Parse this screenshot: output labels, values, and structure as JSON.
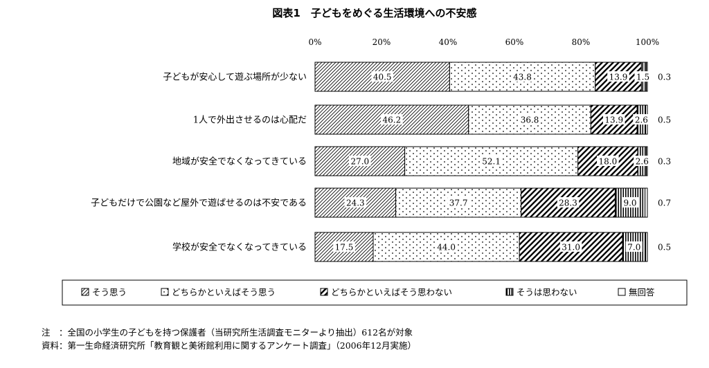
{
  "chart_data": {
    "type": "bar",
    "stacked": true,
    "orientation": "horizontal",
    "title": "図表1　子どもをめぐる生活環境への不安感",
    "x_ticks": [
      "0%",
      "20%",
      "40%",
      "60%",
      "80%",
      "100%"
    ],
    "xlim": [
      0,
      100
    ],
    "categories": [
      "子どもが安心して遊ぶ場所が少ない",
      "1人で外出させるのは心配だ",
      "地域が安全でなくなってきている",
      "子どもだけで公園など屋外で遊ばせるのは不安である",
      "学校が安全でなくなってきている"
    ],
    "series": [
      {
        "name": "そう思う",
        "values": [
          40.5,
          46.2,
          27.0,
          24.3,
          17.5
        ]
      },
      {
        "name": "どちらかといえばそう思う",
        "values": [
          43.8,
          36.8,
          52.1,
          37.7,
          44.0
        ]
      },
      {
        "name": "どちらかといえばそう思わない",
        "values": [
          13.9,
          13.9,
          18.0,
          28.3,
          31.0
        ]
      },
      {
        "name": "そうは思わない",
        "values": [
          1.5,
          2.6,
          2.6,
          9.0,
          7.0
        ]
      },
      {
        "name": "無回答",
        "values": [
          0.3,
          0.5,
          0.3,
          0.7,
          0.5
        ]
      }
    ],
    "value_labels": [
      [
        "40.5",
        "43.8",
        "13.9",
        "1.5",
        "0.3"
      ],
      [
        "46.2",
        "36.8",
        "13.9",
        "2.6",
        "0.5"
      ],
      [
        "27.0",
        "52.1",
        "18.0",
        "2.6",
        "0.3"
      ],
      [
        "24.3",
        "37.7",
        "28.3",
        "9.0",
        "0.7"
      ],
      [
        "17.5",
        "44.0",
        "31.0",
        "7.0",
        "0.5"
      ]
    ],
    "legend_position": "bottom",
    "grid": false
  },
  "notes": [
    "注　：全国の小学生の子どもを持つ保護者（当研究所生活調査モニターより抽出）612名が対象",
    "資料：第一生命経済研究所「教育観と美術館利用に関するアンケート調査」（2006年12月実施）"
  ]
}
